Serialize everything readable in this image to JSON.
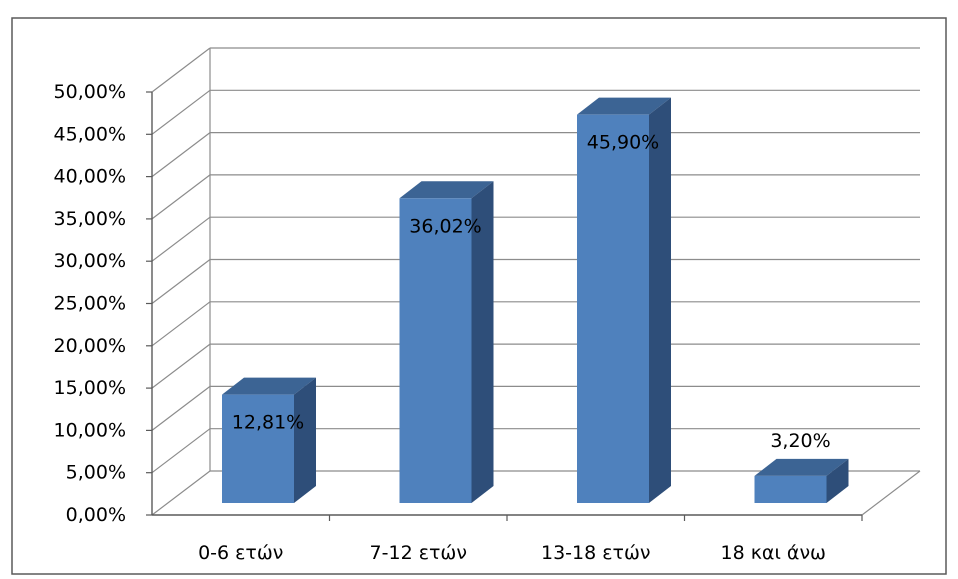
{
  "chart_data": {
    "type": "bar",
    "subtype": "3d-column",
    "categories": [
      "0-6 ετών",
      "7-12 ετών",
      "13-18 ετών",
      "18 και άνω"
    ],
    "values": [
      12.81,
      36.02,
      45.9,
      3.2
    ],
    "data_labels": [
      "12,81%",
      "36,02%",
      "45,90%",
      "3,20%"
    ],
    "ylim": [
      0,
      50
    ],
    "yticks": [
      0,
      5,
      10,
      15,
      20,
      25,
      30,
      35,
      40,
      45,
      50
    ],
    "ytick_labels": [
      "0,00%",
      "5,00%",
      "10,00%",
      "15,00%",
      "20,00%",
      "25,00%",
      "30,00%",
      "35,00%",
      "40,00%",
      "45,00%",
      "50,00%"
    ],
    "title": "",
    "xlabel": "",
    "ylabel": "",
    "grid": true,
    "legend": "none",
    "colors": {
      "bar_front": "#4F81BD",
      "bar_side": "#2E4E79",
      "bar_top": "#3C6494",
      "grid": "#8C8C8C",
      "frame": "#5A5A5A",
      "text": "#000000"
    }
  }
}
